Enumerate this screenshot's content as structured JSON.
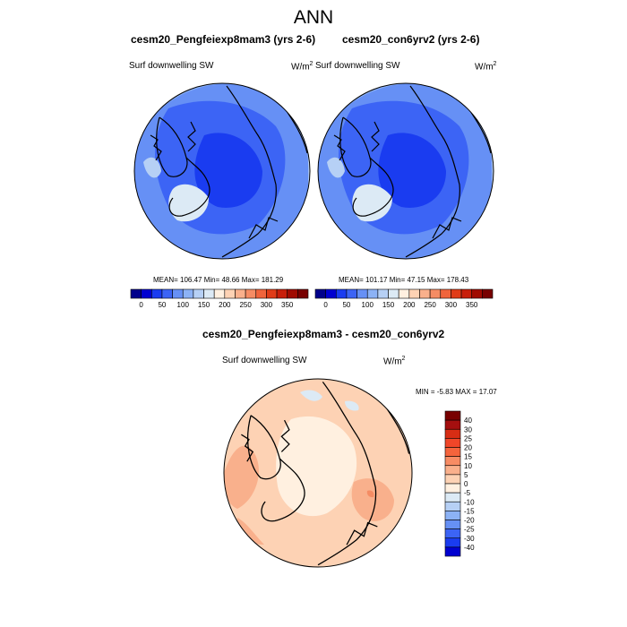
{
  "figure": {
    "title": "ANN",
    "variable_label": "Surf downwelling SW",
    "units_base": "W/m",
    "units_exp": "2"
  },
  "panel_left": {
    "title": "cesm20_Pengfeiexp8mam3 (yrs 2-6)",
    "stats": "MEAN= 106.47  Min=  48.66  Max= 181.29"
  },
  "panel_right": {
    "title": "cesm20_con6yrv2 (yrs 2-6)",
    "stats": "MEAN= 101.17  Min=  47.15  Max= 178.43"
  },
  "panel_diff": {
    "title": "cesm20_Pengfeiexp8mam3 - cesm20_con6yrv2",
    "stats": "MIN =  -5.83 MAX =  17.07"
  },
  "colorbar_abs": {
    "tick_labels": [
      "0",
      "50",
      "100",
      "150",
      "200",
      "250",
      "300",
      "350"
    ],
    "colors": [
      "#00008b",
      "#0000d0",
      "#1a3cf0",
      "#3c64f5",
      "#6690f5",
      "#8cb2f5",
      "#b6d0f5",
      "#dceaf5",
      "#fff0e0",
      "#fdd2b4",
      "#f9b08c",
      "#f58c64",
      "#f0643c",
      "#e03c18",
      "#c81e0a",
      "#a00a00",
      "#780000"
    ]
  },
  "colorbar_diff": {
    "tick_labels": [
      "40",
      "30",
      "25",
      "20",
      "15",
      "10",
      "5",
      "0",
      "-5",
      "-10",
      "-15",
      "-20",
      "-25",
      "-30",
      "-40"
    ],
    "colors": [
      "#780000",
      "#a50f0f",
      "#d72d14",
      "#f04628",
      "#f5643c",
      "#f88c64",
      "#fab08c",
      "#fdd2b4",
      "#fff0e0",
      "#dceaf5",
      "#b6d0f5",
      "#8cb2f5",
      "#6690f5",
      "#3c64f5",
      "#1a3cf0",
      "#0000d0"
    ]
  }
}
